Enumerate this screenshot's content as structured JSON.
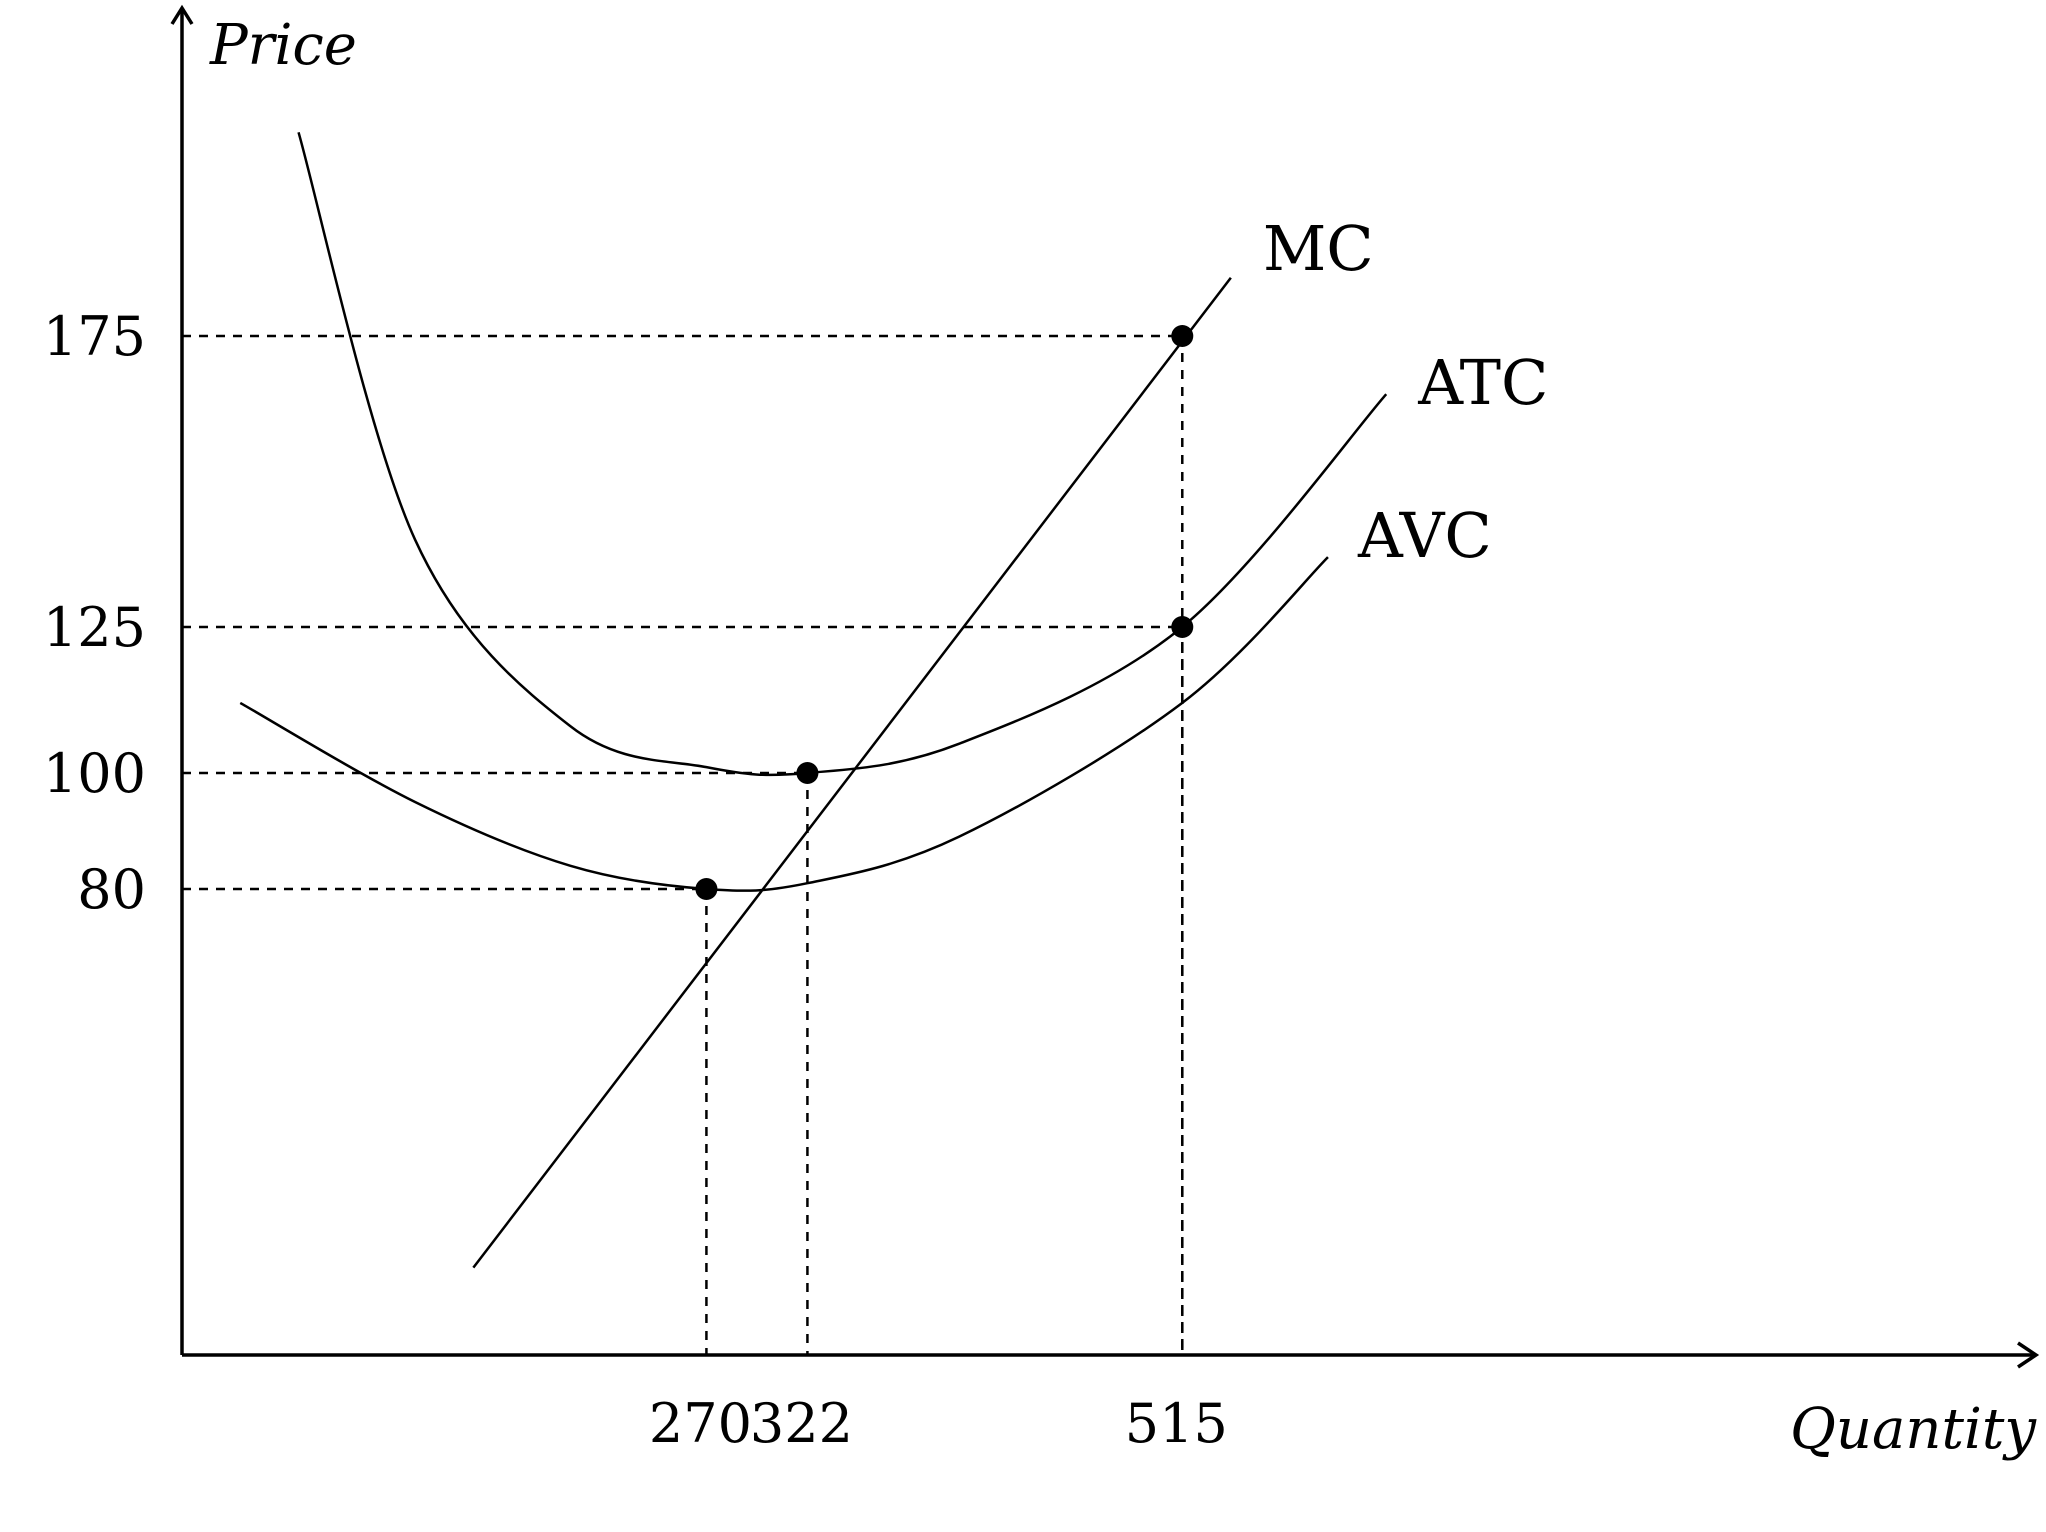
{
  "chart_data": {
    "type": "line",
    "xlabel": "Quantity",
    "ylabel": "Price",
    "x_ticks": [
      270,
      322,
      515
    ],
    "y_ticks": [
      80,
      100,
      125,
      175
    ],
    "series": [
      {
        "name": "MC",
        "x": [
          150,
          270,
          322,
          515,
          540
        ],
        "y": [
          15,
          80,
          100,
          175,
          185
        ]
      },
      {
        "name": "ATC",
        "x": [
          60,
          120,
          200,
          270,
          322,
          400,
          515,
          620
        ],
        "y": [
          210,
          140,
          108,
          101,
          100,
          105,
          125,
          165
        ]
      },
      {
        "name": "AVC",
        "x": [
          30,
          120,
          200,
          270,
          322,
          400,
          515,
          590
        ],
        "y": [
          112,
          95,
          84,
          80,
          81,
          89,
          112,
          137
        ]
      }
    ],
    "points": [
      {
        "x": 270,
        "y": 80
      },
      {
        "x": 322,
        "y": 100
      },
      {
        "x": 515,
        "y": 125
      },
      {
        "x": 515,
        "y": 175
      }
    ],
    "guides": [
      {
        "x": 270,
        "y": 80
      },
      {
        "x": 322,
        "y": 100
      },
      {
        "x": 515,
        "y": 125
      },
      {
        "x": 515,
        "y": 175
      }
    ],
    "grid": false,
    "legend": "none"
  }
}
